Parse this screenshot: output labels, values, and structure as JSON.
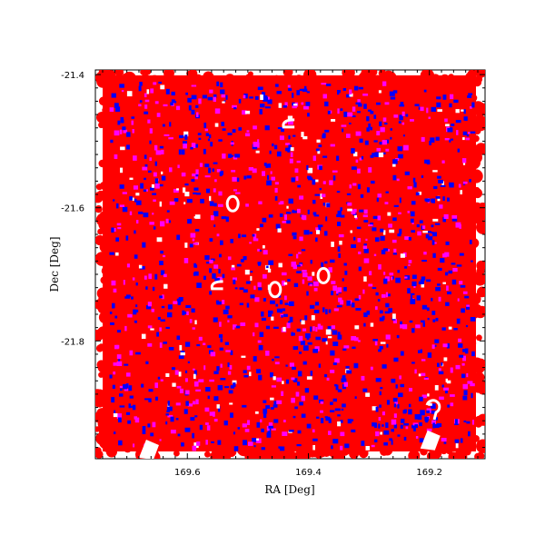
{
  "chart_data": {
    "type": "scatter",
    "title": "",
    "xlabel": "RA [Deg]",
    "ylabel": "Dec [Deg]",
    "xlim": [
      169.752,
      169.108
    ],
    "ylim": [
      -21.977,
      -21.393
    ],
    "x_inverted": true,
    "xticks": [
      169.6,
      169.4,
      169.2
    ],
    "xtick_labels": [
      "169.6",
      "169.4",
      "169.2"
    ],
    "yticks": [
      -21.4,
      -21.6,
      -21.8
    ],
    "ytick_labels": [
      "-21.4",
      "-21.6",
      "-21.8"
    ],
    "grid": false,
    "legend": null,
    "series": [
      {
        "color": "#ff0000",
        "role": "background coverage"
      },
      {
        "color": "#0000ff",
        "role": "scattered detections"
      },
      {
        "color": "#ff00ff",
        "role": "scattered detections"
      }
    ],
    "holes": [
      {
        "ra": 169.525,
        "dec": -21.594,
        "shape": "ring"
      },
      {
        "ra": 169.375,
        "dec": -21.702,
        "shape": "ring"
      },
      {
        "ra": 169.455,
        "dec": -21.723,
        "shape": "ring"
      },
      {
        "ra": 169.55,
        "dec": -21.719,
        "shape": "arc"
      },
      {
        "ra": 169.432,
        "dec": -21.476,
        "shape": "arc"
      },
      {
        "ra": 169.195,
        "dec": -21.902,
        "shape": "hook"
      },
      {
        "ra": 169.2,
        "dec": -21.948,
        "shape": "blob"
      },
      {
        "ra": 169.665,
        "dec": -21.962,
        "shape": "blob"
      }
    ]
  }
}
